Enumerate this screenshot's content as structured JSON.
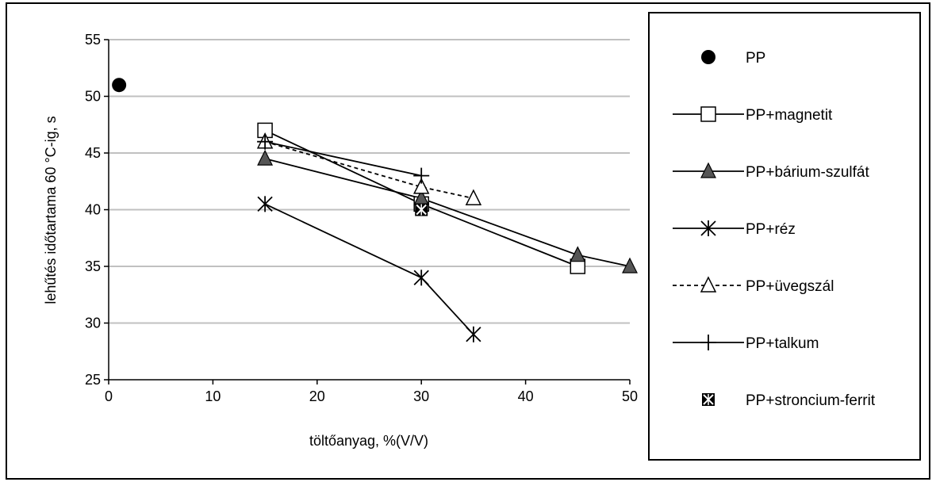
{
  "chart_data": {
    "type": "line",
    "title": "",
    "xlabel": "töltőanyag, %(V/V)",
    "ylabel": "lehűtés időtartama 60 °C-ig, s",
    "xlim": [
      0,
      50
    ],
    "ylim": [
      25,
      55
    ],
    "xticks": [
      0,
      10,
      20,
      30,
      40,
      50
    ],
    "yticks": [
      25,
      30,
      35,
      40,
      45,
      50,
      55
    ],
    "x_tick_labels": [
      "0",
      "10",
      "20",
      "30",
      "40",
      "50"
    ],
    "y_tick_labels": [
      "25",
      "30",
      "35",
      "40",
      "45",
      "50",
      "55"
    ],
    "grid": "horizontal",
    "legend_position": "right",
    "series": [
      {
        "name": "PP",
        "marker": "filled-circle",
        "line": "none",
        "points": [
          [
            1,
            51
          ]
        ]
      },
      {
        "name": "PP+magnetit",
        "marker": "open-square",
        "line": "solid",
        "points": [
          [
            15,
            47
          ],
          [
            30,
            40.5
          ],
          [
            45,
            35
          ]
        ]
      },
      {
        "name": "PP+bárium-szulfát",
        "marker": "filled-triangle",
        "line": "solid",
        "points": [
          [
            15,
            44.5
          ],
          [
            30,
            41
          ],
          [
            45,
            36
          ],
          [
            50,
            35
          ]
        ]
      },
      {
        "name": "PP+réz",
        "marker": "asterisk",
        "line": "solid",
        "points": [
          [
            15,
            40.5
          ],
          [
            30,
            34
          ],
          [
            35,
            29
          ]
        ]
      },
      {
        "name": "PP+üvegszál",
        "marker": "open-triangle",
        "line": "dashed",
        "points": [
          [
            15,
            46
          ],
          [
            30,
            42
          ],
          [
            35,
            41
          ]
        ]
      },
      {
        "name": "PP+talkum",
        "marker": "plus",
        "line": "solid",
        "points": [
          [
            15,
            46
          ],
          [
            30,
            43
          ]
        ]
      },
      {
        "name": "PP+stroncium-ferrit",
        "marker": "boxed-x",
        "line": "none",
        "points": [
          [
            30,
            40
          ]
        ]
      }
    ]
  }
}
